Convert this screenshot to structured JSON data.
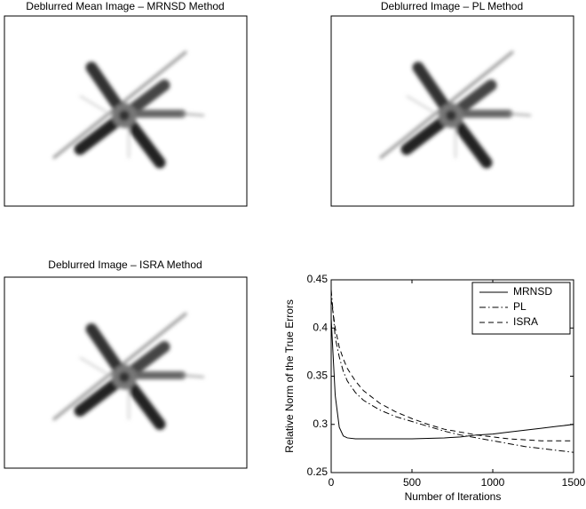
{
  "images": [
    {
      "title": "Deblurred Mean Image – MRNSD Method"
    },
    {
      "title": "Deblurred Image – PL Method"
    },
    {
      "title": "Deblurred Image – ISRA Method"
    }
  ],
  "chart_data": {
    "type": "line",
    "xlabel": "Number of Iterations",
    "ylabel": "Relative Norm of the True Errors",
    "x": [
      0,
      25,
      50,
      75,
      100,
      150,
      200,
      300,
      400,
      500,
      600,
      700,
      800,
      900,
      1000,
      1100,
      1200,
      1300,
      1400,
      1500
    ],
    "series": [
      {
        "name": "MRNSD",
        "color": "#000000",
        "dash": "solid",
        "values": [
          0.41,
          0.33,
          0.297,
          0.288,
          0.286,
          0.285,
          0.285,
          0.285,
          0.285,
          0.285,
          0.2855,
          0.286,
          0.287,
          0.289,
          0.29,
          0.292,
          0.294,
          0.296,
          0.298,
          0.3
        ]
      },
      {
        "name": "PL",
        "color": "#000000",
        "dash": "dashdot",
        "values": [
          0.44,
          0.39,
          0.37,
          0.355,
          0.345,
          0.333,
          0.325,
          0.315,
          0.308,
          0.303,
          0.298,
          0.293,
          0.289,
          0.286,
          0.283,
          0.28,
          0.277,
          0.275,
          0.273,
          0.271
        ]
      },
      {
        "name": "ISRA",
        "color": "#000000",
        "dash": "dashed",
        "values": [
          0.43,
          0.4,
          0.38,
          0.368,
          0.358,
          0.345,
          0.335,
          0.322,
          0.313,
          0.306,
          0.3,
          0.295,
          0.292,
          0.289,
          0.287,
          0.285,
          0.284,
          0.283,
          0.283,
          0.283
        ]
      }
    ],
    "xlim": [
      0,
      1500
    ],
    "xticks": [
      0,
      500,
      1000,
      1500
    ],
    "ylim": [
      0.25,
      0.45
    ],
    "yticks": [
      0.25,
      0.3,
      0.35,
      0.4,
      0.45
    ],
    "legend": "upper right"
  }
}
